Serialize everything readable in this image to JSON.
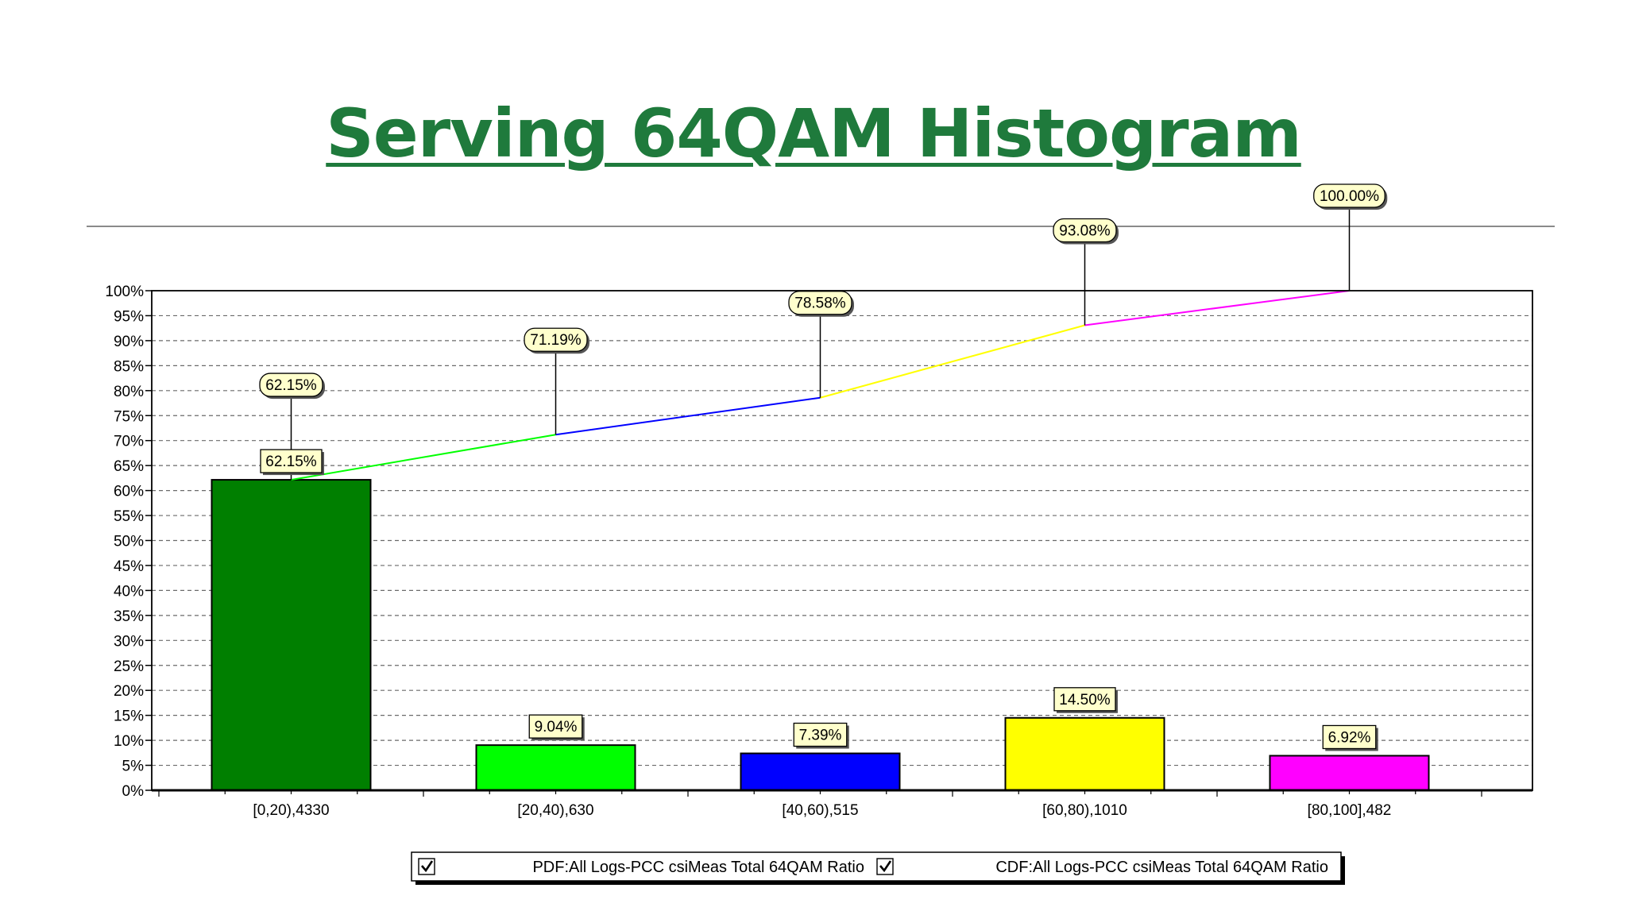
{
  "slide": {
    "title": "Serving 64QAM Histogram"
  },
  "chart_data": {
    "type": "bar",
    "categories": [
      "[0,20),4330",
      "[20,40),630",
      "[40,60),515",
      "[60,80),1010",
      "[80,100],482"
    ],
    "series": [
      {
        "name": "PDF:All Logs-PCC csiMeas Total 64QAM Ratio",
        "kind": "bar",
        "values": [
          62.15,
          9.04,
          7.39,
          14.5,
          6.92
        ],
        "labels": [
          "62.15%",
          "9.04%",
          "7.39%",
          "14.50%",
          "6.92%"
        ],
        "colors": [
          "#007f00",
          "#00ff00",
          "#0000ff",
          "#ffff00",
          "#ff00ff"
        ]
      },
      {
        "name": "CDF:All Logs-PCC csiMeas Total 64QAM Ratio",
        "kind": "line",
        "values": [
          62.15,
          71.19,
          78.58,
          93.08,
          100.0
        ],
        "labels": [
          "62.15%",
          "71.19%",
          "78.58%",
          "93.08%",
          "100.00%"
        ],
        "segment_colors": [
          "#00ff00",
          "#0000ff",
          "#ffff00",
          "#ff00ff"
        ]
      }
    ],
    "y_ticks": [
      "0%",
      "5%",
      "10%",
      "15%",
      "20%",
      "25%",
      "30%",
      "35%",
      "40%",
      "45%",
      "50%",
      "55%",
      "60%",
      "65%",
      "70%",
      "75%",
      "80%",
      "85%",
      "90%",
      "95%",
      "100%"
    ],
    "ylim": [
      0,
      100
    ],
    "grid": true,
    "legend_position": "bottom",
    "legend_checked": [
      true,
      true
    ],
    "title": "",
    "xlabel": "",
    "ylabel": ""
  }
}
